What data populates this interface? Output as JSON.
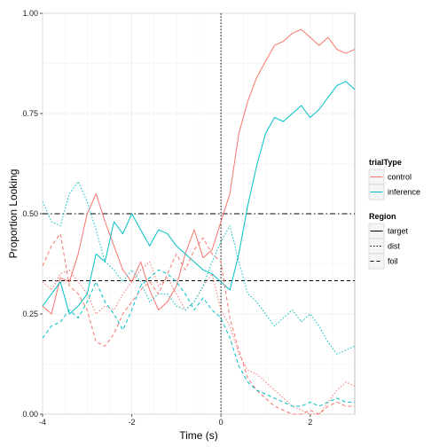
{
  "chart_data": {
    "type": "line",
    "xlabel": "Time (s)",
    "ylabel": "Proportion Looking",
    "xlim": [
      -4,
      3
    ],
    "ylim": [
      0,
      1
    ],
    "x_ticks": [
      -4,
      -2,
      0,
      2
    ],
    "x_tick_labels": [
      "-4",
      "-2",
      "0",
      "2"
    ],
    "y_ticks": [
      0,
      0.25,
      0.5,
      0.75,
      1
    ],
    "y_tick_labels": [
      "0.00",
      "0.25",
      "0.50",
      "0.75",
      "1.00"
    ],
    "grid": true,
    "legend_placement": "right",
    "colors": {
      "control": "#F8766D",
      "inference": "#00BFC4",
      "reference": "#000000",
      "panel": "#ffffff",
      "grid": "#ececec",
      "border": "#a0a0a0"
    },
    "legends": [
      {
        "title": "trialType",
        "entries": [
          {
            "label": "control",
            "color": "#F8766D"
          },
          {
            "label": "inference",
            "color": "#00BFC4"
          }
        ]
      },
      {
        "title": "Region",
        "entries": [
          {
            "label": "target",
            "dash": "solid"
          },
          {
            "label": "dist",
            "dash": "dotted"
          },
          {
            "label": "foil",
            "dash": "dashed"
          }
        ]
      }
    ],
    "reference_lines": [
      {
        "orientation": "vertical",
        "value": 0,
        "dash": "dotted"
      },
      {
        "orientation": "horizontal",
        "value": 0.5,
        "dash": "dotdash"
      },
      {
        "orientation": "horizontal",
        "value": 0.333,
        "dash": "dashed"
      }
    ],
    "series": [
      {
        "name": "control",
        "region": "target",
        "trialType": "control",
        "color": "#F8766D",
        "dash": "solid",
        "x": [
          -4.0,
          -3.8,
          -3.6,
          -3.4,
          -3.2,
          -3.0,
          -2.8,
          -2.6,
          -2.4,
          -2.2,
          -2.0,
          -1.8,
          -1.6,
          -1.4,
          -1.2,
          -1.0,
          -0.8,
          -0.6,
          -0.4,
          -0.2,
          0.0,
          0.2,
          0.4,
          0.6,
          0.8,
          1.0,
          1.2,
          1.4,
          1.6,
          1.8,
          2.0,
          2.2,
          2.4,
          2.6,
          2.8,
          3.0
        ],
        "y": [
          0.27,
          0.25,
          0.34,
          0.33,
          0.4,
          0.5,
          0.55,
          0.48,
          0.42,
          0.36,
          0.33,
          0.38,
          0.31,
          0.26,
          0.28,
          0.32,
          0.4,
          0.46,
          0.39,
          0.41,
          0.48,
          0.55,
          0.7,
          0.78,
          0.84,
          0.88,
          0.92,
          0.93,
          0.95,
          0.96,
          0.94,
          0.92,
          0.94,
          0.91,
          0.9,
          0.91
        ]
      },
      {
        "name": "inference",
        "region": "target",
        "trialType": "inference",
        "color": "#00BFC4",
        "dash": "solid",
        "x": [
          -4.0,
          -3.8,
          -3.6,
          -3.4,
          -3.2,
          -3.0,
          -2.8,
          -2.6,
          -2.4,
          -2.2,
          -2.0,
          -1.8,
          -1.6,
          -1.4,
          -1.2,
          -1.0,
          -0.8,
          -0.6,
          -0.4,
          -0.2,
          0.0,
          0.2,
          0.4,
          0.6,
          0.8,
          1.0,
          1.2,
          1.4,
          1.6,
          1.8,
          2.0,
          2.2,
          2.4,
          2.6,
          2.8,
          3.0
        ],
        "y": [
          0.27,
          0.3,
          0.33,
          0.25,
          0.27,
          0.3,
          0.4,
          0.38,
          0.48,
          0.45,
          0.5,
          0.46,
          0.42,
          0.46,
          0.45,
          0.42,
          0.4,
          0.38,
          0.36,
          0.35,
          0.33,
          0.31,
          0.4,
          0.52,
          0.62,
          0.7,
          0.74,
          0.73,
          0.75,
          0.77,
          0.74,
          0.76,
          0.79,
          0.82,
          0.83,
          0.81
        ]
      },
      {
        "name": "control",
        "region": "dist",
        "trialType": "control",
        "color": "#F8766D",
        "dash": "dotted",
        "x": [
          -4.0,
          -3.8,
          -3.6,
          -3.4,
          -3.2,
          -3.0,
          -2.8,
          -2.6,
          -2.4,
          -2.2,
          -2.0,
          -1.8,
          -1.6,
          -1.4,
          -1.2,
          -1.0,
          -0.8,
          -0.6,
          -0.4,
          -0.2,
          0.0,
          0.2,
          0.4,
          0.6,
          0.8,
          1.0,
          1.2,
          1.4,
          1.6,
          1.8,
          2.0,
          2.2,
          2.4,
          2.6,
          2.8,
          3.0
        ],
        "y": [
          0.33,
          0.31,
          0.35,
          0.36,
          0.33,
          0.3,
          0.25,
          0.27,
          0.26,
          0.3,
          0.33,
          0.36,
          0.38,
          0.32,
          0.34,
          0.3,
          0.26,
          0.28,
          0.32,
          0.35,
          0.26,
          0.22,
          0.15,
          0.11,
          0.1,
          0.08,
          0.06,
          0.04,
          0.02,
          0.01,
          0.0,
          0.0,
          0.03,
          0.06,
          0.08,
          0.07
        ]
      },
      {
        "name": "inference",
        "region": "dist",
        "trialType": "inference",
        "color": "#00BFC4",
        "dash": "dotted",
        "x": [
          -4.0,
          -3.8,
          -3.6,
          -3.4,
          -3.2,
          -3.0,
          -2.8,
          -2.6,
          -2.4,
          -2.2,
          -2.0,
          -1.8,
          -1.6,
          -1.4,
          -1.2,
          -1.0,
          -0.8,
          -0.6,
          -0.4,
          -0.2,
          0.0,
          0.2,
          0.4,
          0.6,
          0.8,
          1.0,
          1.2,
          1.4,
          1.6,
          1.8,
          2.0,
          2.2,
          2.4,
          2.6,
          2.8,
          3.0
        ],
        "y": [
          0.53,
          0.48,
          0.47,
          0.55,
          0.58,
          0.53,
          0.46,
          0.38,
          0.36,
          0.33,
          0.36,
          0.33,
          0.28,
          0.3,
          0.3,
          0.27,
          0.26,
          0.28,
          0.32,
          0.38,
          0.43,
          0.47,
          0.38,
          0.3,
          0.28,
          0.25,
          0.22,
          0.24,
          0.26,
          0.23,
          0.25,
          0.22,
          0.18,
          0.15,
          0.16,
          0.17
        ]
      },
      {
        "name": "control",
        "region": "foil",
        "trialType": "control",
        "color": "#F8766D",
        "dash": "dashed",
        "x": [
          -4.0,
          -3.8,
          -3.6,
          -3.4,
          -3.2,
          -3.0,
          -2.8,
          -2.6,
          -2.4,
          -2.2,
          -2.0,
          -1.8,
          -1.6,
          -1.4,
          -1.2,
          -1.0,
          -0.8,
          -0.6,
          -0.4,
          -0.2,
          0.0,
          0.2,
          0.4,
          0.6,
          0.8,
          1.0,
          1.2,
          1.4,
          1.6,
          1.8,
          2.0,
          2.2,
          2.4,
          2.6,
          2.8,
          3.0
        ],
        "y": [
          0.37,
          0.42,
          0.45,
          0.32,
          0.3,
          0.26,
          0.18,
          0.17,
          0.2,
          0.25,
          0.28,
          0.31,
          0.33,
          0.3,
          0.35,
          0.4,
          0.36,
          0.41,
          0.44,
          0.4,
          0.38,
          0.24,
          0.16,
          0.09,
          0.06,
          0.04,
          0.02,
          0.01,
          0.0,
          0.0,
          0.01,
          0.0,
          0.02,
          0.03,
          0.02,
          0.02
        ]
      },
      {
        "name": "inference",
        "region": "foil",
        "trialType": "inference",
        "color": "#00BFC4",
        "dash": "dashed",
        "x": [
          -4.0,
          -3.8,
          -3.6,
          -3.4,
          -3.2,
          -3.0,
          -2.8,
          -2.6,
          -2.4,
          -2.2,
          -2.0,
          -1.8,
          -1.6,
          -1.4,
          -1.2,
          -1.0,
          -0.8,
          -0.6,
          -0.4,
          -0.2,
          0.0,
          0.2,
          0.4,
          0.6,
          0.8,
          1.0,
          1.2,
          1.4,
          1.6,
          1.8,
          2.0,
          2.2,
          2.4,
          2.6,
          2.8,
          3.0
        ],
        "y": [
          0.19,
          0.22,
          0.23,
          0.26,
          0.24,
          0.28,
          0.33,
          0.28,
          0.25,
          0.21,
          0.26,
          0.32,
          0.34,
          0.36,
          0.35,
          0.33,
          0.3,
          0.26,
          0.29,
          0.26,
          0.24,
          0.19,
          0.12,
          0.08,
          0.06,
          0.05,
          0.04,
          0.03,
          0.02,
          0.02,
          0.03,
          0.02,
          0.03,
          0.04,
          0.03,
          0.03
        ]
      }
    ]
  }
}
